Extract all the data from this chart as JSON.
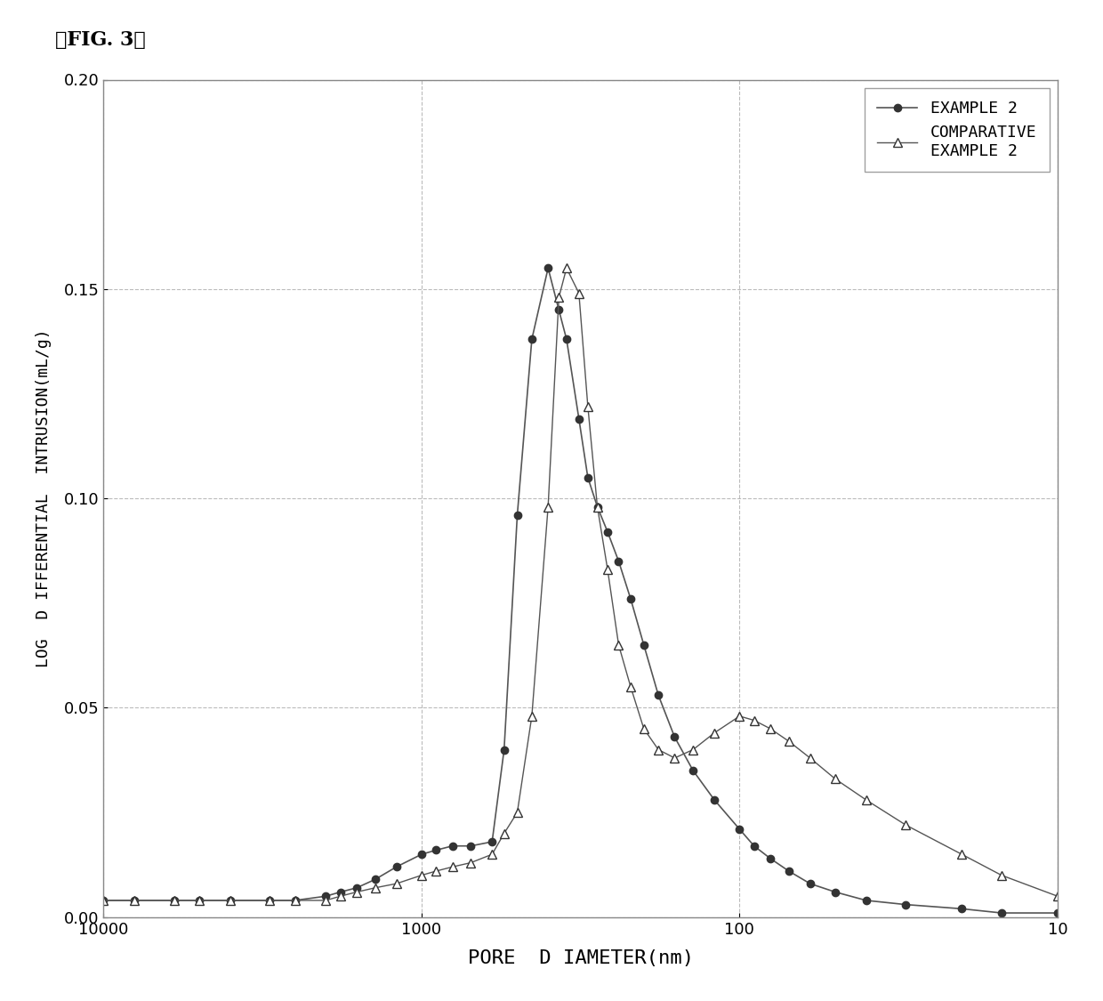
{
  "fig_label": "【FIG. 3】",
  "xlabel": "PORE  D IAMETER(nm)",
  "ylabel": "LOG  D IFFERENTIAL  INTRUSION(mL/g)",
  "xlim_log": [
    10,
    10000
  ],
  "ylim": [
    0.0,
    0.2
  ],
  "yticks": [
    0.0,
    0.05,
    0.1,
    0.15,
    0.2
  ],
  "legend1": "EXAMPLE 2",
  "legend2": "COMPARATIVE\nEXAMPLE 2",
  "line_color": "#555555",
  "marker_color": "#333333",
  "bg_color": "#ffffff",
  "grid_color": "#aaaaaa",
  "example2_x": [
    10000,
    8000,
    6000,
    5000,
    4000,
    3000,
    2500,
    2000,
    1800,
    1600,
    1400,
    1200,
    1000,
    900,
    800,
    700,
    600,
    550,
    500,
    450,
    400,
    370,
    350,
    320,
    300,
    280,
    260,
    240,
    220,
    200,
    180,
    160,
    140,
    120,
    100,
    90,
    80,
    70,
    60,
    50,
    40,
    30,
    20,
    15,
    10
  ],
  "example2_y": [
    0.004,
    0.004,
    0.004,
    0.004,
    0.004,
    0.004,
    0.004,
    0.005,
    0.006,
    0.007,
    0.009,
    0.012,
    0.015,
    0.016,
    0.017,
    0.017,
    0.018,
    0.04,
    0.096,
    0.138,
    0.155,
    0.145,
    0.138,
    0.119,
    0.105,
    0.098,
    0.092,
    0.085,
    0.076,
    0.065,
    0.053,
    0.043,
    0.035,
    0.028,
    0.021,
    0.017,
    0.014,
    0.011,
    0.008,
    0.006,
    0.004,
    0.003,
    0.002,
    0.001,
    0.001
  ],
  "comp2_x": [
    10000,
    8000,
    6000,
    5000,
    4000,
    3000,
    2500,
    2000,
    1800,
    1600,
    1400,
    1200,
    1000,
    900,
    800,
    700,
    600,
    550,
    500,
    450,
    400,
    370,
    350,
    320,
    300,
    280,
    260,
    240,
    220,
    200,
    180,
    160,
    140,
    120,
    100,
    90,
    80,
    70,
    60,
    50,
    40,
    30,
    20,
    15,
    10
  ],
  "comp2_y": [
    0.004,
    0.004,
    0.004,
    0.004,
    0.004,
    0.004,
    0.004,
    0.004,
    0.005,
    0.006,
    0.007,
    0.008,
    0.01,
    0.011,
    0.012,
    0.013,
    0.015,
    0.02,
    0.025,
    0.048,
    0.098,
    0.148,
    0.155,
    0.149,
    0.122,
    0.098,
    0.083,
    0.065,
    0.055,
    0.045,
    0.04,
    0.038,
    0.04,
    0.044,
    0.048,
    0.047,
    0.045,
    0.042,
    0.038,
    0.033,
    0.028,
    0.022,
    0.015,
    0.01,
    0.005
  ]
}
